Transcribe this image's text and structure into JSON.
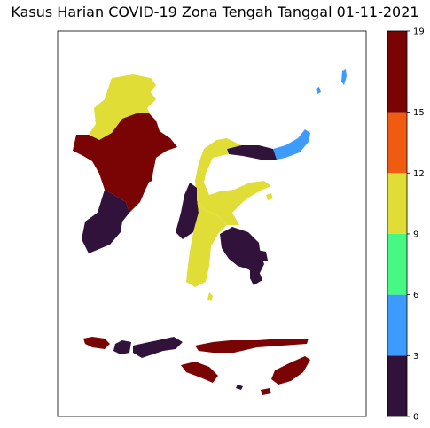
{
  "title": "Kasus Harian COVID-19 Zona Tengah Tanggal 01-11-2021",
  "colorbar": {
    "min": 0,
    "max": 19,
    "ticks": [
      0,
      3,
      6,
      9,
      12,
      15,
      19
    ],
    "bins": [
      {
        "from": 0,
        "to": 3,
        "color": "#30123b"
      },
      {
        "from": 3,
        "to": 6,
        "color": "#3e9bfe"
      },
      {
        "from": 6,
        "to": 9,
        "color": "#46f884"
      },
      {
        "from": 9,
        "to": 12,
        "color": "#e1dd37"
      },
      {
        "from": 12,
        "to": 15,
        "color": "#f05b12"
      },
      {
        "from": 15,
        "to": 19,
        "color": "#7a0403"
      }
    ]
  },
  "regions": [
    {
      "name": "Kalimantan Utara",
      "bin": 3
    },
    {
      "name": "Kalimantan Timur",
      "bin": 5
    },
    {
      "name": "Kalimantan Selatan",
      "bin": 0
    },
    {
      "name": "Sulawesi Utara",
      "bin": 1
    },
    {
      "name": "Gorontalo",
      "bin": 0
    },
    {
      "name": "Sulawesi Tengah",
      "bin": 3
    },
    {
      "name": "Sulawesi Barat",
      "bin": 0
    },
    {
      "name": "Sulawesi Selatan",
      "bin": 3
    },
    {
      "name": "Sulawesi Tenggara",
      "bin": 0
    },
    {
      "name": "Bali",
      "bin": 5
    },
    {
      "name": "Nusa Tenggara Barat",
      "bin": 0
    },
    {
      "name": "Nusa Tenggara Timur",
      "bin": 5
    }
  ]
}
